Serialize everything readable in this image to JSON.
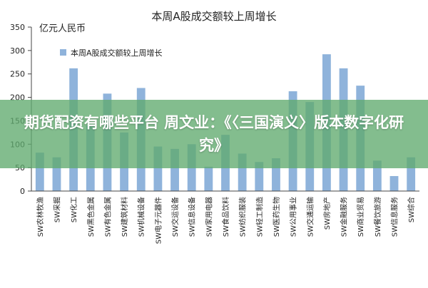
{
  "colors": {
    "bar": "#8fb3db",
    "axis": "#444444",
    "overlay": "#60aa6e"
  },
  "overlay": {
    "caption": "期货配资有哪些平台 周文业：《〈三国演义〉版本数字化研究》"
  },
  "chart_data": {
    "type": "bar",
    "title": "本周A股成交额较上周增长",
    "ylabel": "亿元人民币",
    "xlabel": "",
    "ylim": [
      0,
      350
    ],
    "yticks": [
      0,
      50,
      100,
      150,
      200,
      250,
      300,
      350
    ],
    "grid": false,
    "legend": {
      "position": "top-left"
    },
    "categories": [
      "SW农林牧渔",
      "SW采掘",
      "SW化工",
      "SW黑色金属",
      "SW有色金属",
      "SW建筑材料",
      "SW机械设备",
      "SW电子元器件",
      "SW交运设备",
      "SW信息设备",
      "SW家用电器",
      "SW食品饮料",
      "SW纺织服装",
      "SW轻工制造",
      "SW医药生物",
      "SW公用事业",
      "SW交通运输",
      "SW房地产",
      "SW金融服务",
      "SW商业贸易",
      "SW餐饮旅游",
      "SW信息服务",
      "SW综合"
    ],
    "series": [
      {
        "name": "本周A股成交额较上周增长",
        "values": [
          82,
          72,
          262,
          140,
          208,
          125,
          220,
          95,
          90,
          100,
          52,
          120,
          80,
          62,
          70,
          213,
          190,
          292,
          262,
          225,
          65,
          32,
          72
        ]
      }
    ]
  }
}
